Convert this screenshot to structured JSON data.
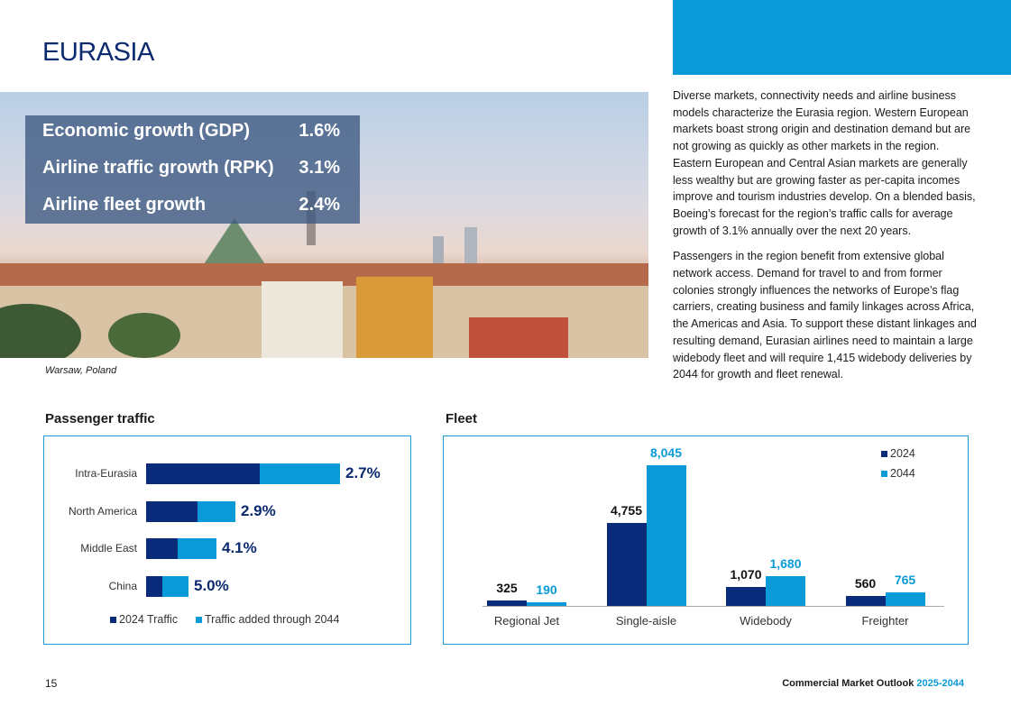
{
  "title": "EURASIA",
  "stats": [
    {
      "label": "Economic growth (GDP)",
      "value": "1.6%"
    },
    {
      "label": "Airline traffic growth (RPK)",
      "value": "3.1%"
    },
    {
      "label": "Airline fleet growth",
      "value": "2.4%"
    }
  ],
  "caption": "Warsaw, Poland",
  "body": [
    "Diverse markets, connectivity needs and airline business models characterize the Eurasia region. Western European markets boast strong origin and destination demand but are not growing as quickly as other markets in the region. Eastern European and Central Asian markets are generally less wealthy but are growing faster as per-capita incomes improve and tourism industries develop. On a blended basis, Boeing’s forecast for the region’s traffic calls for average growth of 3.1% annually over the next 20 years.",
    "Passengers in the region benefit from extensive global network access. Demand for travel to and from former colonies strongly influences the networks of Europe’s flag carriers, creating business and family linkages across Africa, the Americas and Asia. To support these distant linkages and resulting demand, Eurasian airlines need to maintain a large widebody fleet and will require 1,415 widebody deliveries by 2044 for growth and fleet renewal."
  ],
  "chart_data": [
    {
      "type": "bar",
      "orientation": "horizontal",
      "stacked": true,
      "title": "Passenger traffic",
      "categories": [
        "Intra-Eurasia",
        "North America",
        "Middle East",
        "China"
      ],
      "series": [
        {
          "name": "2024 Traffic",
          "values": [
            126,
            57,
            35,
            18
          ],
          "color": "#0a2a7a"
        },
        {
          "name": "Traffic added through 2044",
          "values": [
            89,
            42,
            43,
            29
          ],
          "color": "#0a9ad7"
        }
      ],
      "data_labels": [
        "2.7%",
        "2.9%",
        "4.1%",
        "5.0%"
      ],
      "legend": "bottom"
    },
    {
      "type": "bar",
      "title": "Fleet",
      "categories": [
        "Regional Jet",
        "Single-aisle",
        "Widebody",
        "Freighter"
      ],
      "series": [
        {
          "name": "2024",
          "values": [
            325,
            4755,
            1070,
            560
          ],
          "labels": [
            "325",
            "4,755",
            "1,070",
            "560"
          ],
          "color": "#0a2a7a"
        },
        {
          "name": "2044",
          "values": [
            190,
            8045,
            1680,
            765
          ],
          "labels": [
            "190",
            "8,045",
            "1,680",
            "765"
          ],
          "color": "#0a9ad7"
        }
      ],
      "legend": "top-right"
    }
  ],
  "footer": {
    "page": "15",
    "pub": "Commercial Market Outlook ",
    "years": "2025-2044"
  }
}
